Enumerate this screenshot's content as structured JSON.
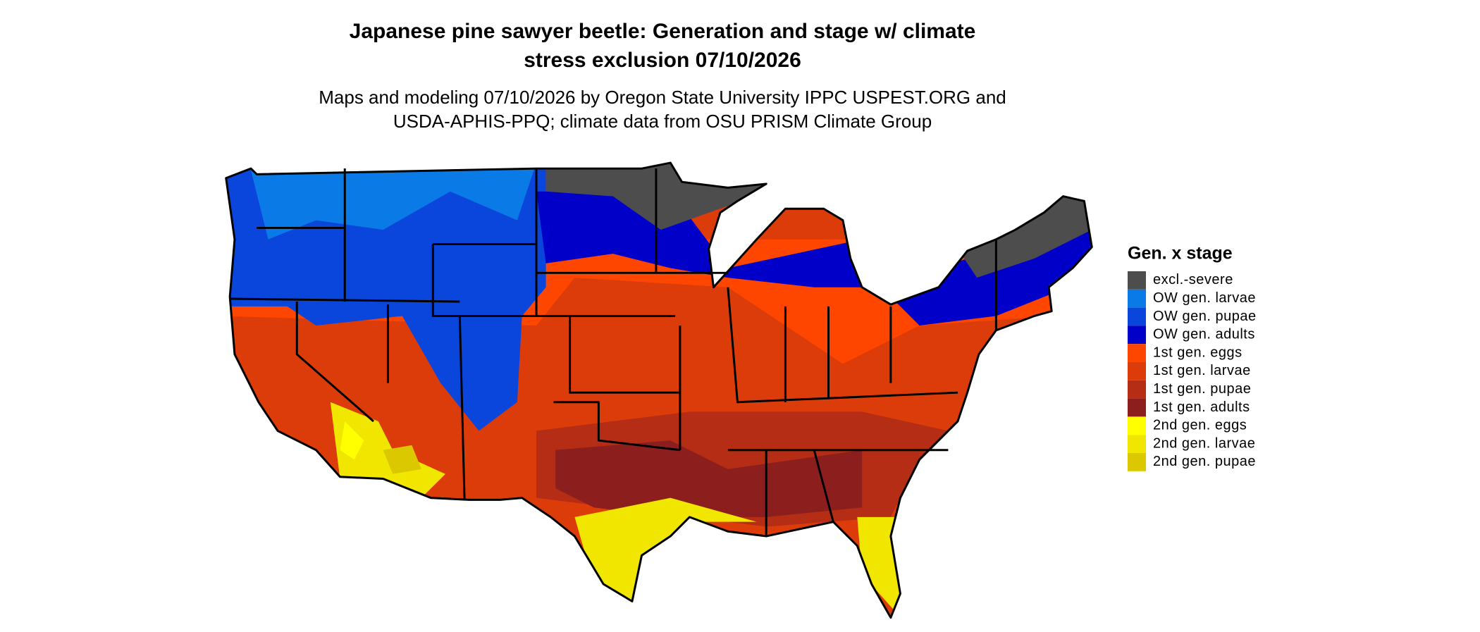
{
  "header": {
    "title_lines": [
      "Japanese pine sawyer beetle: Generation and stage w/ climate",
      "stress exclusion 07/10/2026"
    ],
    "subtitle_lines": [
      "Maps and modeling 07/10/2026 by Oregon State University IPPC USPEST.ORG and",
      "USDA-APHIS-PPQ; climate data from OSU PRISM Climate Group"
    ]
  },
  "legend": {
    "title": "Gen. x stage",
    "items": [
      {
        "label": "excl.-severe",
        "color": "#4d4d4d"
      },
      {
        "label": "OW gen. larvae",
        "color": "#0a7ae6"
      },
      {
        "label": "OW gen. pupae",
        "color": "#0a46dc"
      },
      {
        "label": "OW gen. adults",
        "color": "#0000c8"
      },
      {
        "label": "1st gen. eggs",
        "color": "#ff4600"
      },
      {
        "label": "1st gen. larvae",
        "color": "#dc3c0a"
      },
      {
        "label": "1st gen. pupae",
        "color": "#b42d14"
      },
      {
        "label": "1st gen. adults",
        "color": "#8c1e1e"
      },
      {
        "label": "2nd gen. eggs",
        "color": "#ffff00"
      },
      {
        "label": "2nd gen. larvae",
        "color": "#f0e600"
      },
      {
        "label": "2nd gen. pupae",
        "color": "#dcc800"
      }
    ]
  }
}
